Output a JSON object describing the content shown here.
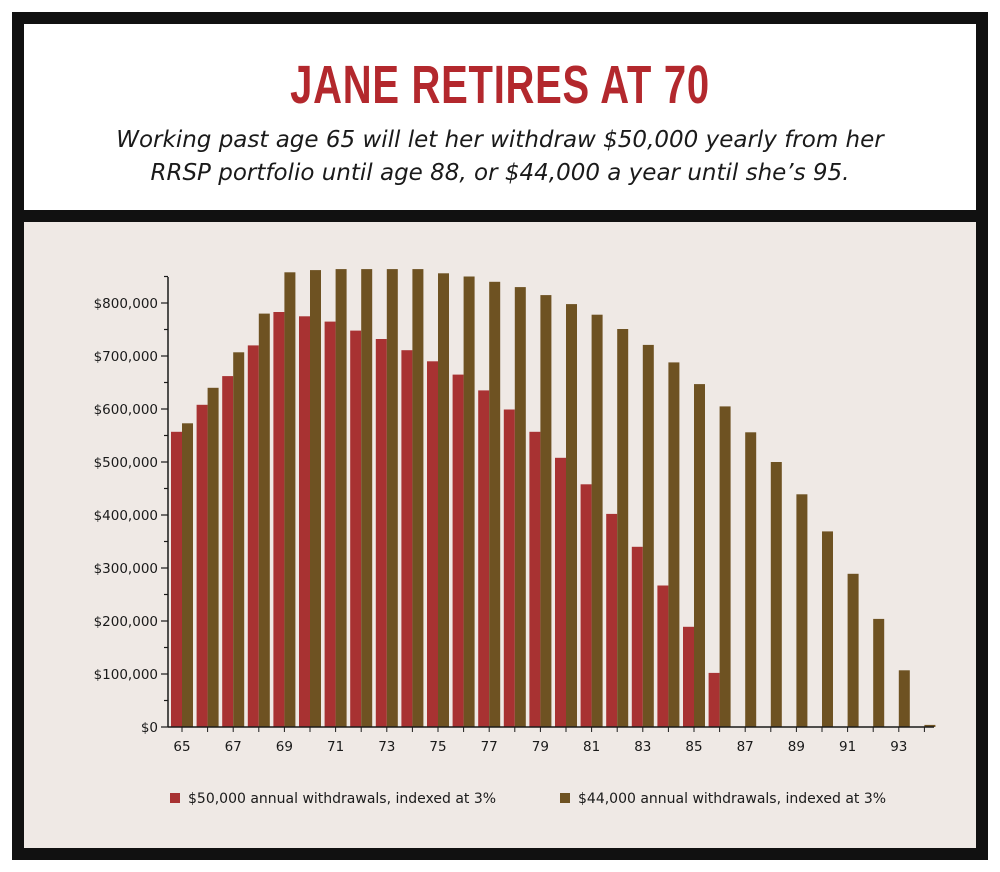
{
  "header": {
    "title": "JANE RETIRES AT 70",
    "subtitle_line1": "Working past age 65 will let her withdraw $50,000 yearly from her",
    "subtitle_line2": "RRSP portfolio until age 88, or $44,000 a year until she’s 95."
  },
  "colors": {
    "series_a": "#a83232",
    "series_b": "#6e5222",
    "panel_bg": "#efe9e5",
    "title": "#b3282d"
  },
  "chart_data": {
    "type": "bar",
    "categories": [
      65,
      66,
      67,
      68,
      69,
      70,
      71,
      72,
      73,
      74,
      75,
      76,
      77,
      78,
      79,
      80,
      81,
      82,
      83,
      84,
      85,
      86,
      87,
      88,
      89,
      90,
      91,
      92,
      93,
      94
    ],
    "x_tick_labels": [
      "65",
      "67",
      "69",
      "71",
      "73",
      "75",
      "77",
      "79",
      "81",
      "83",
      "85",
      "87",
      "89",
      "91",
      "93"
    ],
    "y_tick_labels": [
      "$0",
      "$100,000",
      "$200,000",
      "$300,000",
      "$400,000",
      "$500,000",
      "$600,000",
      "$700,000",
      "$800,000"
    ],
    "ylim": [
      0,
      850000
    ],
    "grid": false,
    "legend_position": "bottom",
    "series": [
      {
        "name": "$50,000 annual withdrawals, indexed at 3%",
        "values": [
          557000,
          608000,
          662000,
          720000,
          783000,
          775000,
          765000,
          748000,
          732000,
          711000,
          690000,
          665000,
          635000,
          599000,
          557000,
          508000,
          458000,
          402000,
          340000,
          267000,
          189000,
          102000,
          0,
          0,
          0,
          0,
          0,
          0,
          0,
          0
        ]
      },
      {
        "name": "$44,000 annual withdrawals, indexed at 3%",
        "values": [
          573000,
          640000,
          707000,
          780000,
          858000,
          862000,
          864000,
          864000,
          864000,
          864000,
          856000,
          850000,
          840000,
          830000,
          815000,
          798000,
          778000,
          751000,
          721000,
          688000,
          647000,
          605000,
          556000,
          500000,
          439000,
          369000,
          289000,
          204000,
          107000,
          4000
        ]
      }
    ]
  }
}
